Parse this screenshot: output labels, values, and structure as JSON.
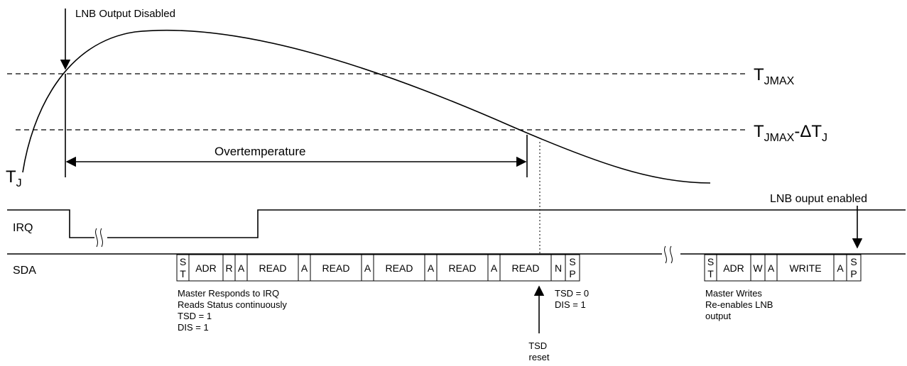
{
  "labels": {
    "lnb_output_disabled": "LNB Output Disabled",
    "tj_max": "T",
    "tj_max_sub": "JMAX",
    "tj_max_dt_prefix": "T",
    "tj_max_dt_sub": "JMAX",
    "tj_max_dt_dash": "-",
    "tj_max_dt_delta": "ΔT",
    "tj_max_dt_sub2": "J",
    "tj": "T",
    "tj_sub": "J",
    "overtemperature": "Overtemperature",
    "lnb_output_enabled": "LNB ouput enabled",
    "irq": "IRQ",
    "sda": "SDA",
    "tsd_reset_line1": "TSD",
    "tsd_reset_line2": "reset"
  },
  "sda_sequence_1": [
    {
      "text": "S",
      "text2": "T"
    },
    {
      "text": "ADR"
    },
    {
      "text": "R"
    },
    {
      "text": "A"
    },
    {
      "text": "READ"
    },
    {
      "text": "A"
    },
    {
      "text": "READ"
    },
    {
      "text": "A"
    },
    {
      "text": "READ"
    },
    {
      "text": "A"
    },
    {
      "text": "READ"
    },
    {
      "text": "A"
    },
    {
      "text": "READ"
    },
    {
      "text": "N"
    },
    {
      "text": "S",
      "text2": "P"
    }
  ],
  "sda_sequence_2": [
    {
      "text": "S",
      "text2": "T"
    },
    {
      "text": "ADR"
    },
    {
      "text": "W"
    },
    {
      "text": "A"
    },
    {
      "text": "WRITE"
    },
    {
      "text": "A"
    },
    {
      "text": "S",
      "text2": "P"
    }
  ],
  "notes": {
    "master_read": [
      "Master Responds to IRQ",
      "Reads Status continuously",
      "TSD = 1",
      "DIS = 1"
    ],
    "tsd_state": [
      "TSD = 0",
      "DIS = 1"
    ],
    "master_write": [
      "Master Writes",
      "Re-enables LNB",
      "output"
    ]
  }
}
